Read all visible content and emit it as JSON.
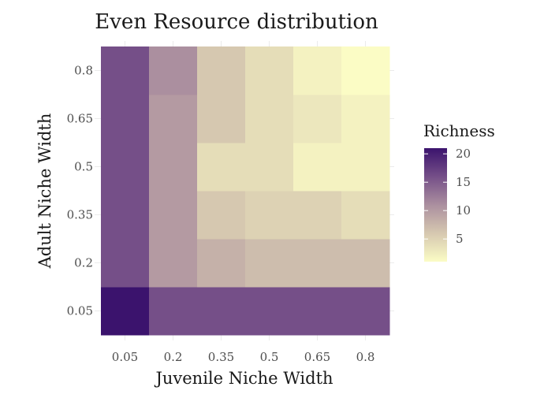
{
  "chart_data": {
    "type": "heatmap",
    "title": "Even Resource distribution",
    "xlabel": "Juvenile Niche Width",
    "ylabel": "Adult Niche Width",
    "x_categories": [
      "0.05",
      "0.2",
      "0.35",
      "0.5",
      "0.65",
      "0.8"
    ],
    "y_categories": [
      "0.05",
      "0.2",
      "0.35",
      "0.5",
      "0.65",
      "0.8"
    ],
    "values": [
      [
        21,
        16,
        16,
        16,
        16,
        16
      ],
      [
        16,
        10,
        8,
        7,
        7,
        7
      ],
      [
        16,
        10,
        6,
        5,
        5,
        4
      ],
      [
        16,
        10,
        4,
        4,
        2,
        2
      ],
      [
        16,
        10,
        6,
        4,
        3,
        2
      ],
      [
        16,
        11,
        6,
        4,
        2,
        1
      ]
    ],
    "value_layout": "values[i][j] = y_categories[i] (rows, bottom to top), x_categories[j] (columns, left to right)",
    "legend": {
      "title": "Richness",
      "ticks": [
        5,
        10,
        15,
        20
      ],
      "range": [
        1,
        21
      ],
      "colors": [
        "#fbfcc5",
        "#d6c8b0",
        "#ab8f9f",
        "#754f88",
        "#3b136d"
      ]
    },
    "grid": true
  }
}
